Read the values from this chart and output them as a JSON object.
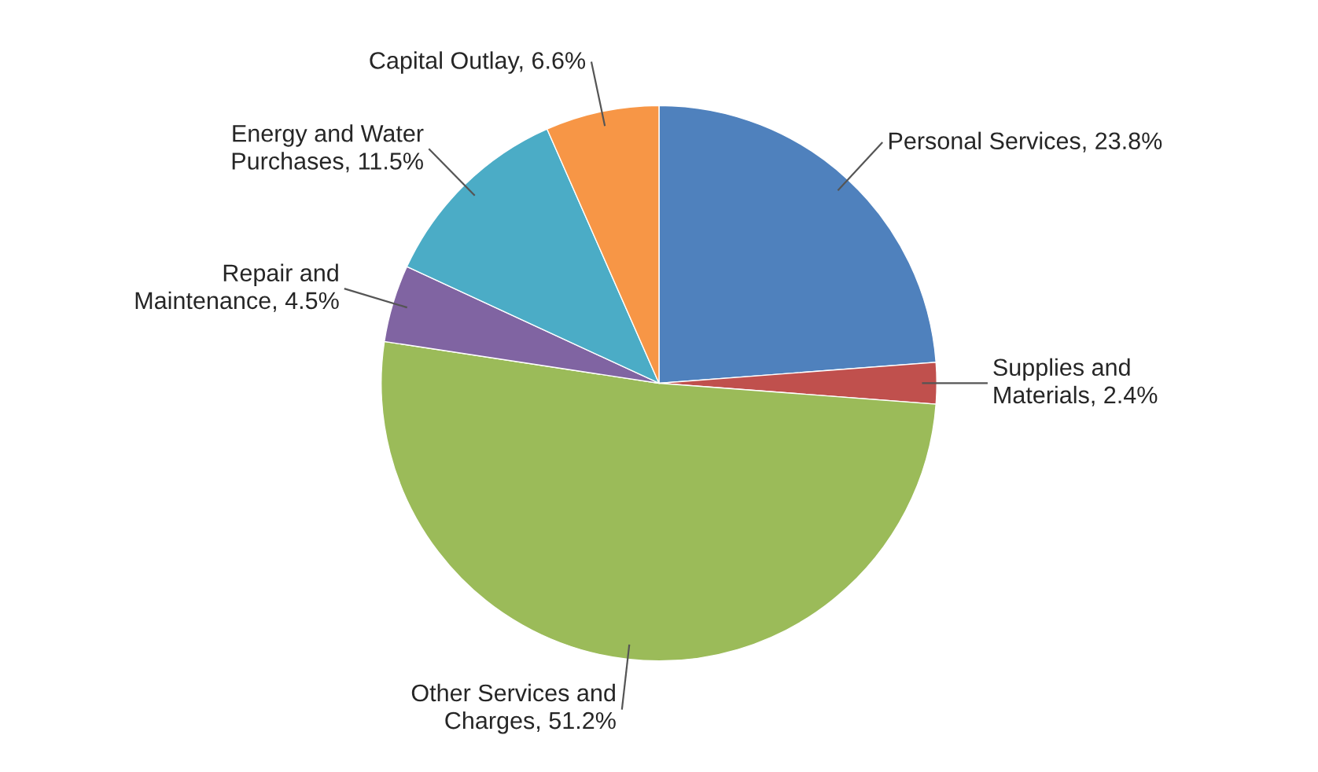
{
  "chart_data": {
    "type": "pie",
    "categories": [
      "Personal Services",
      "Supplies and\nMaterials",
      "Other Services and\nCharges",
      "Repair and\nMaintenance",
      "Energy and Water\nPurchases",
      "Capital Outlay"
    ],
    "values": [
      23.8,
      2.4,
      51.2,
      4.5,
      11.5,
      6.6
    ],
    "value_labels": [
      "23.8%",
      "2.4%",
      "51.2%",
      "4.5%",
      "11.5%",
      "6.6%"
    ],
    "colors": [
      "#4f81bd",
      "#c0504d",
      "#9bbb59",
      "#8064a2",
      "#4bacc6",
      "#f79646"
    ],
    "legend": false
  }
}
